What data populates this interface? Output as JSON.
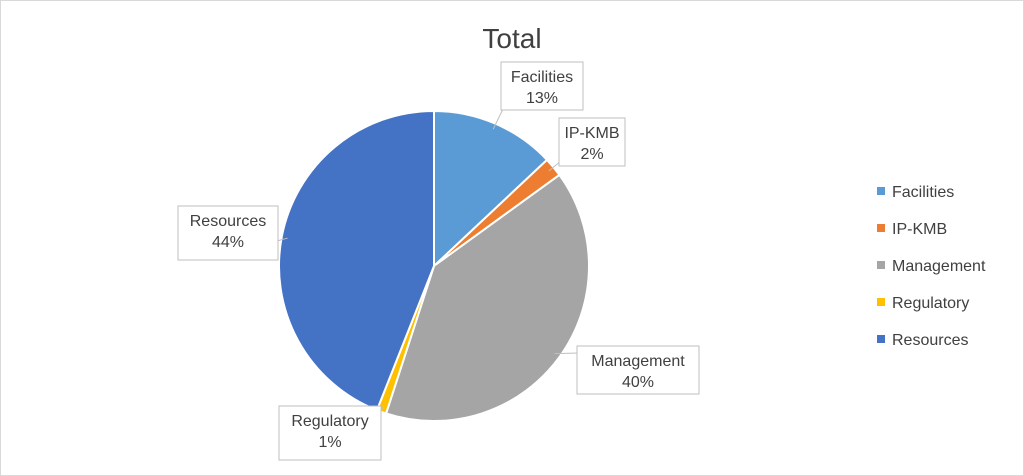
{
  "chart_data": {
    "type": "pie",
    "title": "Total",
    "slices": [
      {
        "label": "Facilities",
        "value": 13,
        "display": "13%",
        "color": "#5b9bd5"
      },
      {
        "label": "IP-KMB",
        "value": 2,
        "display": "2%",
        "color": "#ed7d31"
      },
      {
        "label": "Management",
        "value": 40,
        "display": "40%",
        "color": "#a5a5a5"
      },
      {
        "label": "Regulatory",
        "value": 1,
        "display": "1%",
        "color": "#ffc000"
      },
      {
        "label": "Resources",
        "value": 44,
        "display": "44%",
        "color": "#4472c4"
      }
    ],
    "legend_position": "right"
  }
}
